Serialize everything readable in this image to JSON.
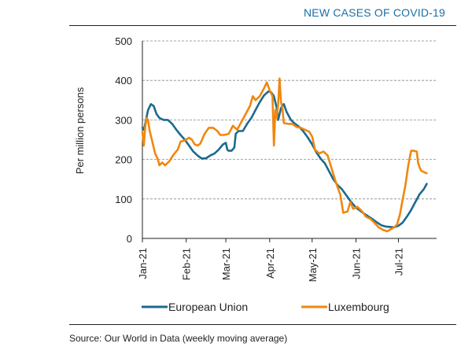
{
  "header": {
    "title": "NEW CASES OF COVID-19"
  },
  "footer": {
    "source": "Source: Our World in Data (weekly moving average)"
  },
  "colors": {
    "eu": "#1c6a8e",
    "lux": "#f0870f",
    "grid": "#888888",
    "axis": "#222222"
  },
  "chart_data": {
    "type": "line",
    "ylabel": "Per million persons",
    "ylim": [
      0,
      500
    ],
    "yticks": [
      0,
      100,
      200,
      300,
      400,
      500
    ],
    "grid": true,
    "legend": "bottom",
    "x_range": [
      "2021-01-01",
      "2021-07-28"
    ],
    "xticks": [
      {
        "label": "Jan-21",
        "date": "2021-01-01"
      },
      {
        "label": "Feb-21",
        "date": "2021-02-01"
      },
      {
        "label": "Mar-21",
        "date": "2021-03-01"
      },
      {
        "label": "Apr-21",
        "date": "2021-04-01"
      },
      {
        "label": "May-21",
        "date": "2021-05-01"
      },
      {
        "label": "Jun-21",
        "date": "2021-06-01"
      },
      {
        "label": "Jul-21",
        "date": "2021-07-01"
      }
    ],
    "series": [
      {
        "name": "European Union",
        "color": "#1c6a8e",
        "points": [
          [
            "2021-01-01",
            280
          ],
          [
            "2021-01-02",
            275
          ],
          [
            "2021-01-03",
            290
          ],
          [
            "2021-01-05",
            325
          ],
          [
            "2021-01-07",
            340
          ],
          [
            "2021-01-09",
            335
          ],
          [
            "2021-01-11",
            315
          ],
          [
            "2021-01-13",
            305
          ],
          [
            "2021-01-16",
            300
          ],
          [
            "2021-01-19",
            300
          ],
          [
            "2021-01-22",
            290
          ],
          [
            "2021-01-25",
            275
          ],
          [
            "2021-01-28",
            262
          ],
          [
            "2021-01-31",
            250
          ],
          [
            "2021-02-03",
            235
          ],
          [
            "2021-02-06",
            220
          ],
          [
            "2021-02-09",
            210
          ],
          [
            "2021-02-12",
            202
          ],
          [
            "2021-02-15",
            203
          ],
          [
            "2021-02-18",
            210
          ],
          [
            "2021-02-21",
            215
          ],
          [
            "2021-02-24",
            225
          ],
          [
            "2021-02-27",
            238
          ],
          [
            "2021-03-01",
            242
          ],
          [
            "2021-03-02",
            225
          ],
          [
            "2021-03-03",
            222
          ],
          [
            "2021-03-05",
            222
          ],
          [
            "2021-03-07",
            230
          ],
          [
            "2021-03-08",
            265
          ],
          [
            "2021-03-10",
            272
          ],
          [
            "2021-03-13",
            272
          ],
          [
            "2021-03-16",
            290
          ],
          [
            "2021-03-19",
            305
          ],
          [
            "2021-03-22",
            325
          ],
          [
            "2021-03-25",
            345
          ],
          [
            "2021-03-28",
            362
          ],
          [
            "2021-03-31",
            372
          ],
          [
            "2021-04-02",
            370
          ],
          [
            "2021-04-04",
            360
          ],
          [
            "2021-04-06",
            330
          ],
          [
            "2021-04-07",
            300
          ],
          [
            "2021-04-09",
            330
          ],
          [
            "2021-04-11",
            340
          ],
          [
            "2021-04-13",
            320
          ],
          [
            "2021-04-16",
            300
          ],
          [
            "2021-04-19",
            290
          ],
          [
            "2021-04-22",
            282
          ],
          [
            "2021-04-25",
            270
          ],
          [
            "2021-04-28",
            255
          ],
          [
            "2021-05-01",
            238
          ],
          [
            "2021-05-04",
            218
          ],
          [
            "2021-05-07",
            202
          ],
          [
            "2021-05-10",
            190
          ],
          [
            "2021-05-13",
            170
          ],
          [
            "2021-05-16",
            150
          ],
          [
            "2021-05-19",
            135
          ],
          [
            "2021-05-22",
            125
          ],
          [
            "2021-05-25",
            110
          ],
          [
            "2021-05-28",
            95
          ],
          [
            "2021-06-01",
            78
          ],
          [
            "2021-06-04",
            70
          ],
          [
            "2021-06-07",
            62
          ],
          [
            "2021-06-10",
            55
          ],
          [
            "2021-06-13",
            48
          ],
          [
            "2021-06-16",
            40
          ],
          [
            "2021-06-19",
            33
          ],
          [
            "2021-06-22",
            30
          ],
          [
            "2021-06-25",
            29
          ],
          [
            "2021-06-28",
            28
          ],
          [
            "2021-07-01",
            32
          ],
          [
            "2021-07-04",
            40
          ],
          [
            "2021-07-07",
            55
          ],
          [
            "2021-07-10",
            72
          ],
          [
            "2021-07-13",
            92
          ],
          [
            "2021-07-16",
            112
          ],
          [
            "2021-07-19",
            125
          ],
          [
            "2021-07-21",
            138
          ]
        ]
      },
      {
        "name": "Luxembourg",
        "color": "#f0870f",
        "points": [
          [
            "2021-01-01",
            270
          ],
          [
            "2021-01-02",
            235
          ],
          [
            "2021-01-03",
            282
          ],
          [
            "2021-01-04",
            305
          ],
          [
            "2021-01-05",
            300
          ],
          [
            "2021-01-06",
            275
          ],
          [
            "2021-01-08",
            245
          ],
          [
            "2021-01-10",
            215
          ],
          [
            "2021-01-12",
            200
          ],
          [
            "2021-01-13",
            185
          ],
          [
            "2021-01-15",
            192
          ],
          [
            "2021-01-17",
            185
          ],
          [
            "2021-01-20",
            195
          ],
          [
            "2021-01-23",
            212
          ],
          [
            "2021-01-26",
            225
          ],
          [
            "2021-01-28",
            245
          ],
          [
            "2021-01-31",
            248
          ],
          [
            "2021-02-03",
            255
          ],
          [
            "2021-02-05",
            250
          ],
          [
            "2021-02-07",
            238
          ],
          [
            "2021-02-09",
            235
          ],
          [
            "2021-02-11",
            240
          ],
          [
            "2021-02-14",
            265
          ],
          [
            "2021-02-17",
            280
          ],
          [
            "2021-02-20",
            280
          ],
          [
            "2021-02-23",
            272
          ],
          [
            "2021-02-25",
            262
          ],
          [
            "2021-02-28",
            262
          ],
          [
            "2021-03-03",
            265
          ],
          [
            "2021-03-06",
            285
          ],
          [
            "2021-03-09",
            275
          ],
          [
            "2021-03-12",
            295
          ],
          [
            "2021-03-15",
            315
          ],
          [
            "2021-03-18",
            335
          ],
          [
            "2021-03-20",
            360
          ],
          [
            "2021-03-22",
            350
          ],
          [
            "2021-03-25",
            360
          ],
          [
            "2021-03-28",
            380
          ],
          [
            "2021-03-30",
            395
          ],
          [
            "2021-04-01",
            375
          ],
          [
            "2021-04-03",
            360
          ],
          [
            "2021-04-04",
            235
          ],
          [
            "2021-04-05",
            325
          ],
          [
            "2021-04-06",
            305
          ],
          [
            "2021-04-07",
            340
          ],
          [
            "2021-04-08",
            405
          ],
          [
            "2021-04-09",
            345
          ],
          [
            "2021-04-10",
            330
          ],
          [
            "2021-04-11",
            292
          ],
          [
            "2021-04-14",
            290
          ],
          [
            "2021-04-17",
            290
          ],
          [
            "2021-04-20",
            282
          ],
          [
            "2021-04-23",
            280
          ],
          [
            "2021-04-26",
            275
          ],
          [
            "2021-04-29",
            270
          ],
          [
            "2021-05-01",
            258
          ],
          [
            "2021-05-03",
            225
          ],
          [
            "2021-05-06",
            215
          ],
          [
            "2021-05-09",
            220
          ],
          [
            "2021-05-12",
            210
          ],
          [
            "2021-05-15",
            175
          ],
          [
            "2021-05-18",
            140
          ],
          [
            "2021-05-21",
            110
          ],
          [
            "2021-05-23",
            65
          ],
          [
            "2021-05-26",
            68
          ],
          [
            "2021-05-28",
            92
          ],
          [
            "2021-05-30",
            75
          ],
          [
            "2021-06-02",
            80
          ],
          [
            "2021-06-05",
            70
          ],
          [
            "2021-06-08",
            55
          ],
          [
            "2021-06-11",
            50
          ],
          [
            "2021-06-14",
            40
          ],
          [
            "2021-06-17",
            28
          ],
          [
            "2021-06-20",
            22
          ],
          [
            "2021-06-23",
            18
          ],
          [
            "2021-06-25",
            22
          ],
          [
            "2021-06-28",
            28
          ],
          [
            "2021-06-30",
            35
          ],
          [
            "2021-07-02",
            60
          ],
          [
            "2021-07-04",
            98
          ],
          [
            "2021-07-06",
            135
          ],
          [
            "2021-07-08",
            185
          ],
          [
            "2021-07-10",
            222
          ],
          [
            "2021-07-12",
            222
          ],
          [
            "2021-07-14",
            220
          ],
          [
            "2021-07-15",
            190
          ],
          [
            "2021-07-16",
            180
          ],
          [
            "2021-07-17",
            172
          ],
          [
            "2021-07-19",
            168
          ],
          [
            "2021-07-21",
            165
          ]
        ]
      }
    ]
  }
}
